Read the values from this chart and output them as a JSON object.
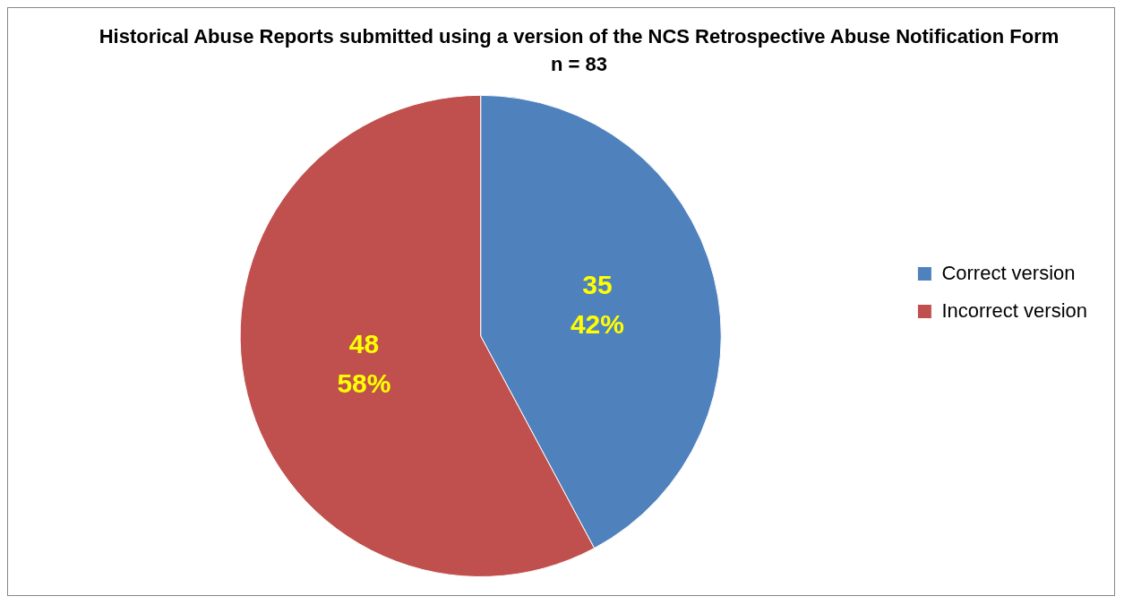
{
  "chart_data": {
    "type": "pie",
    "title": "Historical Abuse Reports submitted using a version of the NCS Retrospective Abuse Notification Form",
    "subtitle": "n = 83",
    "categories": [
      "Correct version",
      "Incorrect version"
    ],
    "values": [
      35,
      48
    ],
    "colors": [
      "#4f81bd",
      "#c0504d"
    ],
    "value_labels": [
      "35\n42%",
      "48\n58%"
    ],
    "legend": "right"
  }
}
